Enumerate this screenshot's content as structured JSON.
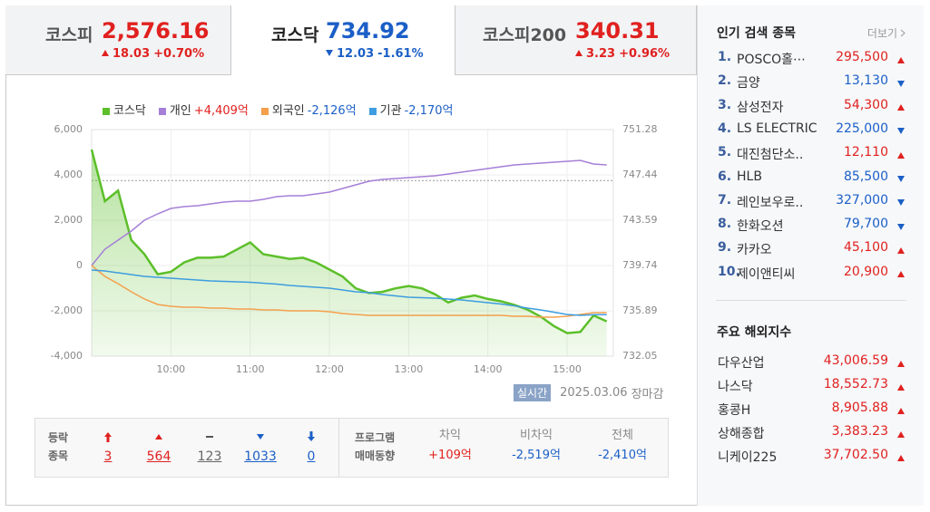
{
  "tabs": [
    {
      "name": "코스피",
      "value": "2,576.16",
      "change": "18.03",
      "rate": "+0.70%",
      "dir": "up"
    },
    {
      "name": "코스닥",
      "value": "734.92",
      "change": "12.03",
      "rate": "-1.61%",
      "dir": "down"
    },
    {
      "name": "코스피200",
      "value": "340.31",
      "change": "3.23",
      "rate": "+0.96%",
      "dir": "up"
    }
  ],
  "chart_data": {
    "type": "line",
    "x": [
      "09:00",
      "09:10",
      "09:20",
      "09:30",
      "09:40",
      "09:50",
      "10:00",
      "10:10",
      "10:20",
      "10:30",
      "10:40",
      "10:50",
      "11:00",
      "11:10",
      "11:20",
      "11:30",
      "11:40",
      "11:50",
      "12:00",
      "12:10",
      "12:20",
      "12:30",
      "12:40",
      "12:50",
      "13:00",
      "13:10",
      "13:20",
      "13:30",
      "13:40",
      "13:50",
      "14:00",
      "14:10",
      "14:20",
      "14:30",
      "14:40",
      "14:50",
      "15:00",
      "15:10",
      "15:20",
      "15:30"
    ],
    "xlim": [
      "09:00",
      "15:35"
    ],
    "xticks": [
      "10:00",
      "11:00",
      "12:00",
      "13:00",
      "14:00",
      "15:00"
    ],
    "ylim": [
      -4000,
      6000
    ],
    "yticks": [
      {
        "value": -4000,
        "label": "-4,000"
      },
      {
        "value": -2000,
        "label": "-2,000"
      },
      0,
      {
        "value": 2000,
        "label": "2,000"
      },
      {
        "value": 4000,
        "label": "4,000"
      },
      {
        "value": 6000,
        "label": "6,000"
      }
    ],
    "y2lim": [
      732.05,
      751.28
    ],
    "y2ticks": [
      732.05,
      735.89,
      739.74,
      743.59,
      747.44,
      751.28
    ],
    "reference_line": 746.95,
    "grid": true,
    "series": [
      {
        "name": "코스닥",
        "color": "#5cbf2a",
        "axis": "y2",
        "area": true,
        "values": [
          749.59,
          745.2,
          746.1,
          741.9,
          740.7,
          739.0,
          739.2,
          740.0,
          740.4,
          740.4,
          740.5,
          741.1,
          741.7,
          740.7,
          740.5,
          740.3,
          740.4,
          740.0,
          739.4,
          738.8,
          737.8,
          737.4,
          737.5,
          737.8,
          738.0,
          737.8,
          737.3,
          736.6,
          737.0,
          737.2,
          736.9,
          736.7,
          736.4,
          736.0,
          735.4,
          734.6,
          734.0,
          734.1,
          735.5,
          735.0
        ]
      },
      {
        "name": "개인",
        "legend_value": "+4,409억",
        "color": "#a57fd8",
        "axis": "y",
        "values": [
          0,
          720,
          1120,
          1520,
          2000,
          2280,
          2520,
          2600,
          2640,
          2720,
          2800,
          2840,
          2840,
          2920,
          3040,
          3080,
          3080,
          3160,
          3240,
          3400,
          3560,
          3720,
          3800,
          3840,
          3880,
          3920,
          3960,
          4040,
          4120,
          4200,
          4280,
          4360,
          4440,
          4480,
          4520,
          4560,
          4600,
          4640,
          4480,
          4440
        ]
      },
      {
        "name": "외국인",
        "legend_value": "-2,126억",
        "color": "#f4a04c",
        "axis": "y",
        "values": [
          0,
          -480,
          -800,
          -1160,
          -1480,
          -1720,
          -1800,
          -1840,
          -1840,
          -1880,
          -1880,
          -1920,
          -1920,
          -1960,
          -1960,
          -2000,
          -2000,
          -2000,
          -2040,
          -2120,
          -2160,
          -2200,
          -2200,
          -2200,
          -2200,
          -2200,
          -2200,
          -2200,
          -2200,
          -2200,
          -2200,
          -2200,
          -2240,
          -2240,
          -2280,
          -2280,
          -2240,
          -2160,
          -2080,
          -2080
        ]
      },
      {
        "name": "기관",
        "legend_value": "-2,170억",
        "color": "#3d9de0",
        "axis": "y",
        "values": [
          -200,
          -240,
          -320,
          -400,
          -480,
          -520,
          -560,
          -600,
          -640,
          -680,
          -700,
          -720,
          -740,
          -780,
          -820,
          -880,
          -920,
          -960,
          -1000,
          -1080,
          -1160,
          -1200,
          -1280,
          -1340,
          -1400,
          -1420,
          -1440,
          -1480,
          -1520,
          -1580,
          -1640,
          -1700,
          -1780,
          -1880,
          -1960,
          -2060,
          -2160,
          -2200,
          -2170,
          -2170
        ]
      }
    ]
  },
  "status": {
    "badge": "실시간",
    "date": "2025.03.06",
    "state": "장마감"
  },
  "breadth": {
    "label_lines": [
      "등락",
      "종목"
    ],
    "items": [
      {
        "value": "3",
        "kind": "upper"
      },
      {
        "value": "564",
        "kind": "up"
      },
      {
        "value": "123",
        "kind": "flat"
      },
      {
        "value": "1033",
        "kind": "down"
      },
      {
        "value": "0",
        "kind": "lower"
      }
    ]
  },
  "program": {
    "label_lines": [
      "프로그램",
      "매매동향"
    ],
    "items": [
      {
        "name": "차익",
        "value": "+109억"
      },
      {
        "name": "비차익",
        "value": "-2,519억"
      },
      {
        "name": "전체",
        "value": "-2,410억"
      }
    ]
  },
  "popular": {
    "title": "인기 검색 종목",
    "more": "더보기",
    "items": [
      {
        "rank": "1.",
        "name": "POSCO홀⋯",
        "price": "295,500",
        "dir": "up"
      },
      {
        "rank": "2.",
        "name": "금양",
        "price": "13,130",
        "dir": "down"
      },
      {
        "rank": "3.",
        "name": "삼성전자",
        "price": "54,300",
        "dir": "up"
      },
      {
        "rank": "4.",
        "name": "LS ELECTRIC",
        "price": "225,000",
        "dir": "down"
      },
      {
        "rank": "5.",
        "name": "대진첨단소..",
        "price": "12,110",
        "dir": "up"
      },
      {
        "rank": "6.",
        "name": "HLB",
        "price": "85,500",
        "dir": "down"
      },
      {
        "rank": "7.",
        "name": "레인보우로..",
        "price": "327,000",
        "dir": "down"
      },
      {
        "rank": "8.",
        "name": "한화오션",
        "price": "79,700",
        "dir": "down"
      },
      {
        "rank": "9.",
        "name": "카카오",
        "price": "45,100",
        "dir": "up"
      },
      {
        "rank": "10.",
        "name": "제이앤티씨",
        "price": "20,900",
        "dir": "up"
      }
    ]
  },
  "indices": {
    "title": "주요 해외지수",
    "items": [
      {
        "name": "다우산업",
        "value": "43,006.59",
        "dir": "up"
      },
      {
        "name": "나스닥",
        "value": "18,552.73",
        "dir": "up"
      },
      {
        "name": "홍콩H",
        "value": "8,905.88",
        "dir": "up"
      },
      {
        "name": "상해종합",
        "value": "3,383.23",
        "dir": "up"
      },
      {
        "name": "니케이225",
        "value": "37,702.50",
        "dir": "up"
      }
    ]
  }
}
